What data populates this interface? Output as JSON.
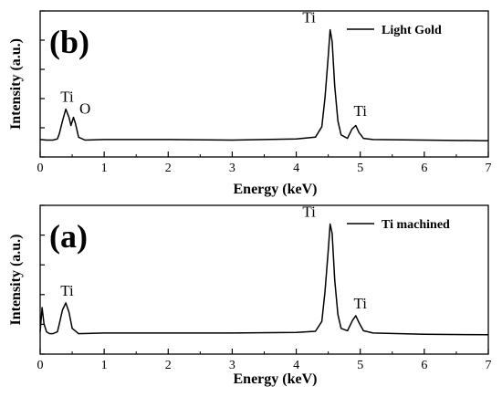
{
  "chart_data": [
    {
      "type": "line",
      "panel_label": "(b)",
      "xlabel": "Energy (keV)",
      "ylabel": "Intensity (a.u.)",
      "xlim": [
        0,
        7
      ],
      "x_ticks": [
        0,
        1,
        2,
        3,
        4,
        5,
        6,
        7
      ],
      "y_tick_labels_shown": false,
      "grid": false,
      "legend": {
        "position": "top-right",
        "entries": [
          "Light Gold"
        ]
      },
      "series": [
        {
          "name": "Light Gold",
          "x": [
            0.0,
            0.1,
            0.2,
            0.27,
            0.3,
            0.35,
            0.4,
            0.45,
            0.48,
            0.52,
            0.55,
            0.6,
            0.7,
            1.0,
            2.0,
            3.0,
            4.0,
            4.3,
            4.4,
            4.45,
            4.5,
            4.53,
            4.56,
            4.6,
            4.65,
            4.7,
            4.8,
            4.87,
            4.93,
            4.98,
            5.05,
            5.2,
            6.0,
            7.0
          ],
          "y": [
            0.4,
            0.35,
            0.35,
            0.45,
            0.9,
            2.0,
            3.0,
            2.3,
            1.6,
            2.3,
            1.8,
            0.6,
            0.35,
            0.4,
            0.4,
            0.35,
            0.45,
            0.6,
            1.5,
            4.0,
            7.5,
            9.8,
            8.8,
            5.0,
            2.0,
            0.8,
            0.5,
            1.3,
            1.6,
            1.0,
            0.5,
            0.4,
            0.35,
            0.3
          ]
        }
      ],
      "annotations": [
        {
          "text": "Ti",
          "x": 0.42,
          "y": 3.0
        },
        {
          "text": "O",
          "x": 0.7,
          "y": 2.0
        },
        {
          "text": "Ti",
          "x": 4.2,
          "y": 9.8
        },
        {
          "text": "Ti",
          "x": 5.0,
          "y": 1.8
        }
      ]
    },
    {
      "type": "line",
      "panel_label": "(a)",
      "xlabel": "Energy (keV)",
      "ylabel": "Intensity (a.u.)",
      "xlim": [
        0,
        7
      ],
      "x_ticks": [
        0,
        1,
        2,
        3,
        4,
        5,
        6,
        7
      ],
      "y_tick_labels_shown": false,
      "grid": false,
      "legend": {
        "position": "top-right",
        "entries": [
          "Ti machined"
        ]
      },
      "series": [
        {
          "name": "Ti machined",
          "x": [
            0.0,
            0.03,
            0.06,
            0.1,
            0.15,
            0.2,
            0.27,
            0.3,
            0.35,
            0.4,
            0.45,
            0.5,
            0.6,
            1.0,
            2.0,
            3.0,
            4.0,
            4.3,
            4.4,
            4.45,
            4.5,
            4.53,
            4.56,
            4.6,
            4.65,
            4.7,
            4.8,
            4.88,
            4.93,
            4.98,
            5.05,
            5.2,
            6.0,
            7.0
          ],
          "y": [
            0.5,
            2.6,
            1.2,
            0.5,
            0.35,
            0.35,
            0.5,
            1.2,
            2.4,
            3.0,
            2.2,
            0.8,
            0.35,
            0.4,
            0.4,
            0.4,
            0.45,
            0.55,
            1.4,
            4.0,
            7.5,
            9.8,
            9.0,
            5.0,
            2.0,
            0.8,
            0.6,
            1.5,
            1.9,
            1.3,
            0.6,
            0.4,
            0.3,
            0.25
          ]
        }
      ],
      "annotations": [
        {
          "text": "Ti",
          "x": 0.42,
          "y": 3.0
        },
        {
          "text": "Ti",
          "x": 4.2,
          "y": 9.8
        },
        {
          "text": "Ti",
          "x": 5.0,
          "y": 1.9
        }
      ]
    }
  ]
}
